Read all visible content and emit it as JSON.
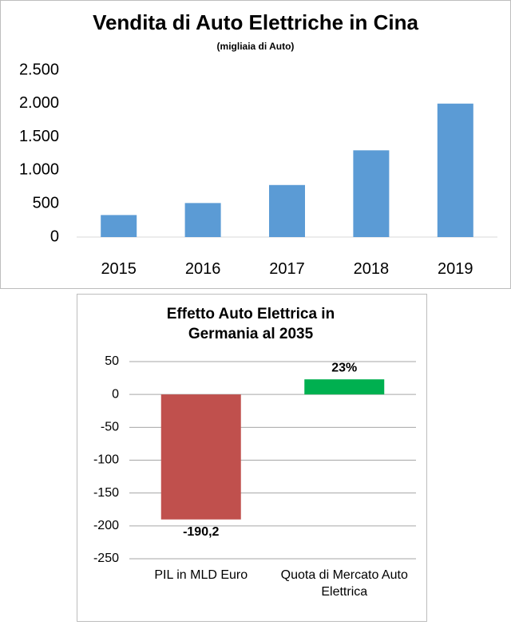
{
  "chart_data": [
    {
      "type": "bar",
      "title": "Vendita di Auto Elettriche in Cina",
      "subtitle": "(migliaia di Auto)",
      "categories": [
        "2015",
        "2016",
        "2017",
        "2018",
        "2019"
      ],
      "values": [
        330,
        510,
        780,
        1300,
        2000
      ],
      "color": "#5b9bd5",
      "ylim": [
        0,
        2500
      ],
      "yticks": [
        0,
        500,
        {
          "value": 1000,
          "label": "1.000"
        },
        {
          "value": 1500,
          "label": "1.500"
        },
        {
          "value": 2000,
          "label": "2.000"
        },
        {
          "value": 2500,
          "label": "2.500"
        }
      ],
      "grid": false
    },
    {
      "type": "bar",
      "title": "Effetto Auto Elettrica in Germania al 2035",
      "categories": [
        "PIL in MLD Euro",
        "Quota di Mercato Auto Elettrica"
      ],
      "values": [
        -190.2,
        23
      ],
      "value_labels": [
        "-190,2",
        "23%"
      ],
      "colors": [
        "#c0504d",
        "#00b050"
      ],
      "ylim": [
        -250,
        50
      ],
      "yticks": [
        -250,
        -200,
        -150,
        -100,
        -50,
        0,
        50
      ],
      "grid": true
    }
  ]
}
